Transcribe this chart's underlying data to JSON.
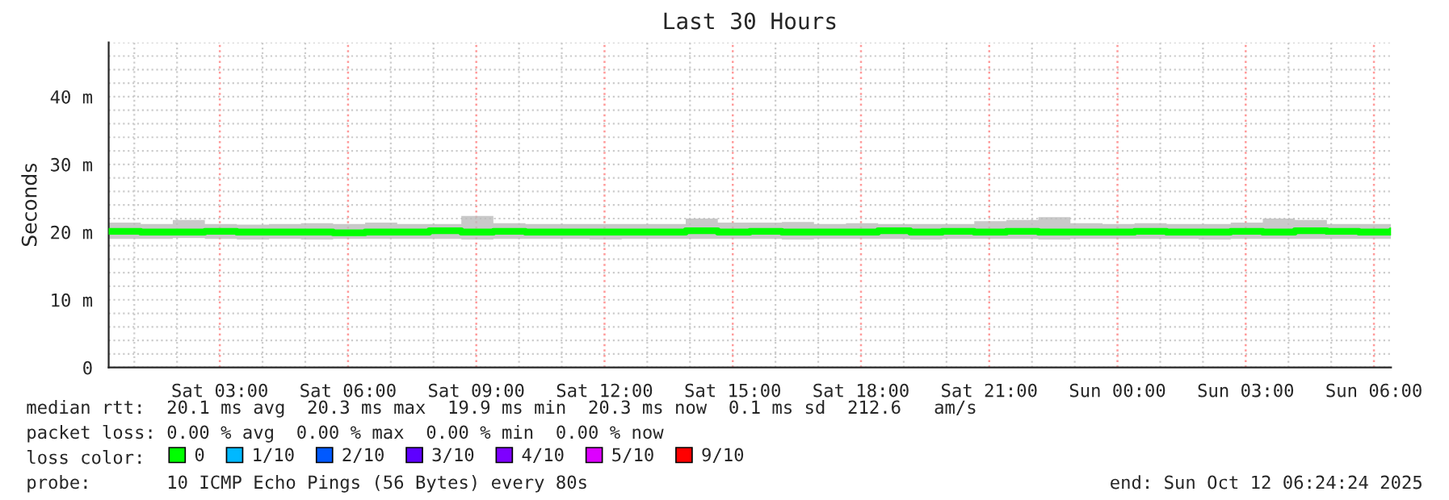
{
  "chart_data": {
    "type": "step",
    "title": "Last 30 Hours",
    "ylabel": "Seconds",
    "x": [
      "2025-10-11T00:24",
      "2025-10-11T01:09",
      "2025-10-11T01:54",
      "2025-10-11T02:39",
      "2025-10-11T03:24",
      "2025-10-11T04:09",
      "2025-10-11T04:54",
      "2025-10-11T05:39",
      "2025-10-11T06:24",
      "2025-10-11T07:09",
      "2025-10-11T07:54",
      "2025-10-11T08:39",
      "2025-10-11T09:24",
      "2025-10-11T10:09",
      "2025-10-11T10:54",
      "2025-10-11T11:39",
      "2025-10-11T12:24",
      "2025-10-11T13:09",
      "2025-10-11T13:54",
      "2025-10-11T14:39",
      "2025-10-11T15:24",
      "2025-10-11T16:09",
      "2025-10-11T16:54",
      "2025-10-11T17:39",
      "2025-10-11T18:24",
      "2025-10-11T19:09",
      "2025-10-11T19:54",
      "2025-10-11T20:39",
      "2025-10-11T21:24",
      "2025-10-11T22:09",
      "2025-10-11T22:54",
      "2025-10-11T23:39",
      "2025-10-12T00:24",
      "2025-10-12T01:09",
      "2025-10-12T01:54",
      "2025-10-12T02:39",
      "2025-10-12T03:24",
      "2025-10-12T04:09",
      "2025-10-12T04:54",
      "2025-10-12T05:39",
      "2025-10-12T06:24"
    ],
    "series": [
      {
        "name": "0",
        "color": "#00ff00",
        "values": [
          20.1,
          20.0,
          20.0,
          20.1,
          20.0,
          20.0,
          20.0,
          19.9,
          20.0,
          20.0,
          20.2,
          20.0,
          20.1,
          20.0,
          20.0,
          20.0,
          20.0,
          20.0,
          20.2,
          20.0,
          20.1,
          20.0,
          20.0,
          20.0,
          20.2,
          20.0,
          20.1,
          20.0,
          20.1,
          20.0,
          20.0,
          20.0,
          20.1,
          20.0,
          20.0,
          20.1,
          20.0,
          20.2,
          20.1,
          20.0,
          20.2
        ],
        "lower": [
          19.0,
          19.0,
          19.1,
          19.0,
          18.9,
          19.0,
          18.9,
          19.0,
          19.0,
          19.0,
          19.0,
          18.9,
          19.0,
          19.0,
          19.0,
          18.9,
          19.0,
          19.0,
          19.0,
          19.0,
          19.0,
          18.9,
          19.0,
          19.0,
          19.0,
          18.9,
          19.0,
          19.0,
          19.0,
          18.9,
          19.0,
          19.0,
          19.0,
          19.0,
          18.9,
          19.0,
          19.0,
          19.0,
          19.0,
          19.0,
          19.0
        ],
        "upper": [
          21.4,
          21.2,
          21.8,
          21.2,
          21.1,
          21.2,
          21.3,
          21.2,
          21.4,
          21.2,
          21.2,
          22.4,
          21.3,
          21.2,
          21.2,
          21.2,
          21.2,
          21.2,
          22.0,
          21.4,
          21.4,
          21.5,
          21.2,
          21.3,
          21.2,
          21.2,
          21.2,
          21.6,
          21.8,
          22.2,
          21.3,
          21.2,
          21.3,
          21.2,
          21.2,
          21.4,
          22.0,
          21.8,
          21.2,
          21.2,
          21.6
        ]
      },
      {
        "name": "1/10",
        "color": "#00b8ff",
        "values": [
          null,
          null,
          null,
          null,
          null,
          null,
          null,
          null,
          null,
          null,
          null,
          null,
          null,
          null,
          null,
          null,
          null,
          null,
          null,
          null,
          null,
          null,
          null,
          null,
          null,
          null,
          null,
          null,
          null,
          null,
          null,
          null,
          null,
          null,
          null,
          null,
          null,
          null,
          null,
          null,
          null
        ]
      },
      {
        "name": "2/10",
        "color": "#0059ff",
        "values": [
          null,
          null,
          null,
          null,
          null,
          null,
          null,
          null,
          null,
          null,
          null,
          null,
          null,
          null,
          null,
          null,
          null,
          null,
          null,
          null,
          null,
          null,
          null,
          null,
          null,
          null,
          null,
          null,
          null,
          null,
          null,
          null,
          null,
          null,
          null,
          null,
          null,
          null,
          null,
          null,
          null
        ]
      },
      {
        "name": "3/10",
        "color": "#5e00ff",
        "values": [
          null,
          null,
          null,
          null,
          null,
          null,
          null,
          null,
          null,
          null,
          null,
          null,
          null,
          null,
          null,
          null,
          null,
          null,
          null,
          null,
          null,
          null,
          null,
          null,
          null,
          null,
          null,
          null,
          null,
          null,
          null,
          null,
          null,
          null,
          null,
          null,
          null,
          null,
          null,
          null,
          null
        ]
      },
      {
        "name": "4/10",
        "color": "#7e00ff",
        "values": [
          null,
          null,
          null,
          null,
          null,
          null,
          null,
          null,
          null,
          null,
          null,
          null,
          null,
          null,
          null,
          null,
          null,
          null,
          null,
          null,
          null,
          null,
          null,
          null,
          null,
          null,
          null,
          null,
          null,
          null,
          null,
          null,
          null,
          null,
          null,
          null,
          null,
          null,
          null,
          null,
          null
        ]
      },
      {
        "name": "5/10",
        "color": "#dd00ff",
        "values": [
          null,
          null,
          null,
          null,
          null,
          null,
          null,
          null,
          null,
          null,
          null,
          null,
          null,
          null,
          null,
          null,
          null,
          null,
          null,
          null,
          null,
          null,
          null,
          null,
          null,
          null,
          null,
          null,
          null,
          null,
          null,
          null,
          null,
          null,
          null,
          null,
          null,
          null,
          null,
          null,
          null
        ]
      },
      {
        "name": "9/10",
        "color": "#ff0000",
        "values": [
          null,
          null,
          null,
          null,
          null,
          null,
          null,
          null,
          null,
          null,
          null,
          null,
          null,
          null,
          null,
          null,
          null,
          null,
          null,
          null,
          null,
          null,
          null,
          null,
          null,
          null,
          null,
          null,
          null,
          null,
          null,
          null,
          null,
          null,
          null,
          null,
          null,
          null,
          null,
          null,
          null
        ]
      }
    ],
    "xlim": [
      "2025-10-11T00:24",
      "2025-10-12T06:24"
    ],
    "xticks": [
      {
        "value": "2025-10-11T03:00",
        "label": "Sat 03:00"
      },
      {
        "value": "2025-10-11T06:00",
        "label": "Sat 06:00"
      },
      {
        "value": "2025-10-11T09:00",
        "label": "Sat 09:00"
      },
      {
        "value": "2025-10-11T12:00",
        "label": "Sat 12:00"
      },
      {
        "value": "2025-10-11T15:00",
        "label": "Sat 15:00"
      },
      {
        "value": "2025-10-11T18:00",
        "label": "Sat 18:00"
      },
      {
        "value": "2025-10-11T21:00",
        "label": "Sat 21:00"
      },
      {
        "value": "2025-10-12T00:00",
        "label": "Sun 00:00"
      },
      {
        "value": "2025-10-12T03:00",
        "label": "Sun 03:00"
      },
      {
        "value": "2025-10-12T06:00",
        "label": "Sun 06:00"
      }
    ],
    "ylim": [
      0,
      48
    ],
    "yticks": [
      0,
      {
        "value": 10,
        "label": "10 m"
      },
      {
        "value": 20,
        "label": "20 m"
      },
      {
        "value": 30,
        "label": "30 m"
      },
      {
        "value": 40,
        "label": "40 m"
      }
    ],
    "grid": true,
    "legend": "bottom",
    "annotations": [
      "median rtt:  20.1 ms avg  20.3 ms max  19.9 ms min  20.3 ms now  0.1 ms sd  212.6   am/s",
      "packet loss: 0.00 % avg  0.00 % max  0.00 % min  0.00 % now",
      "loss color:",
      "probe:       10 ICMP Echo Pings (56 Bytes) every 80s",
      "end: Sun Oct 12 06:24:24 2025"
    ]
  }
}
